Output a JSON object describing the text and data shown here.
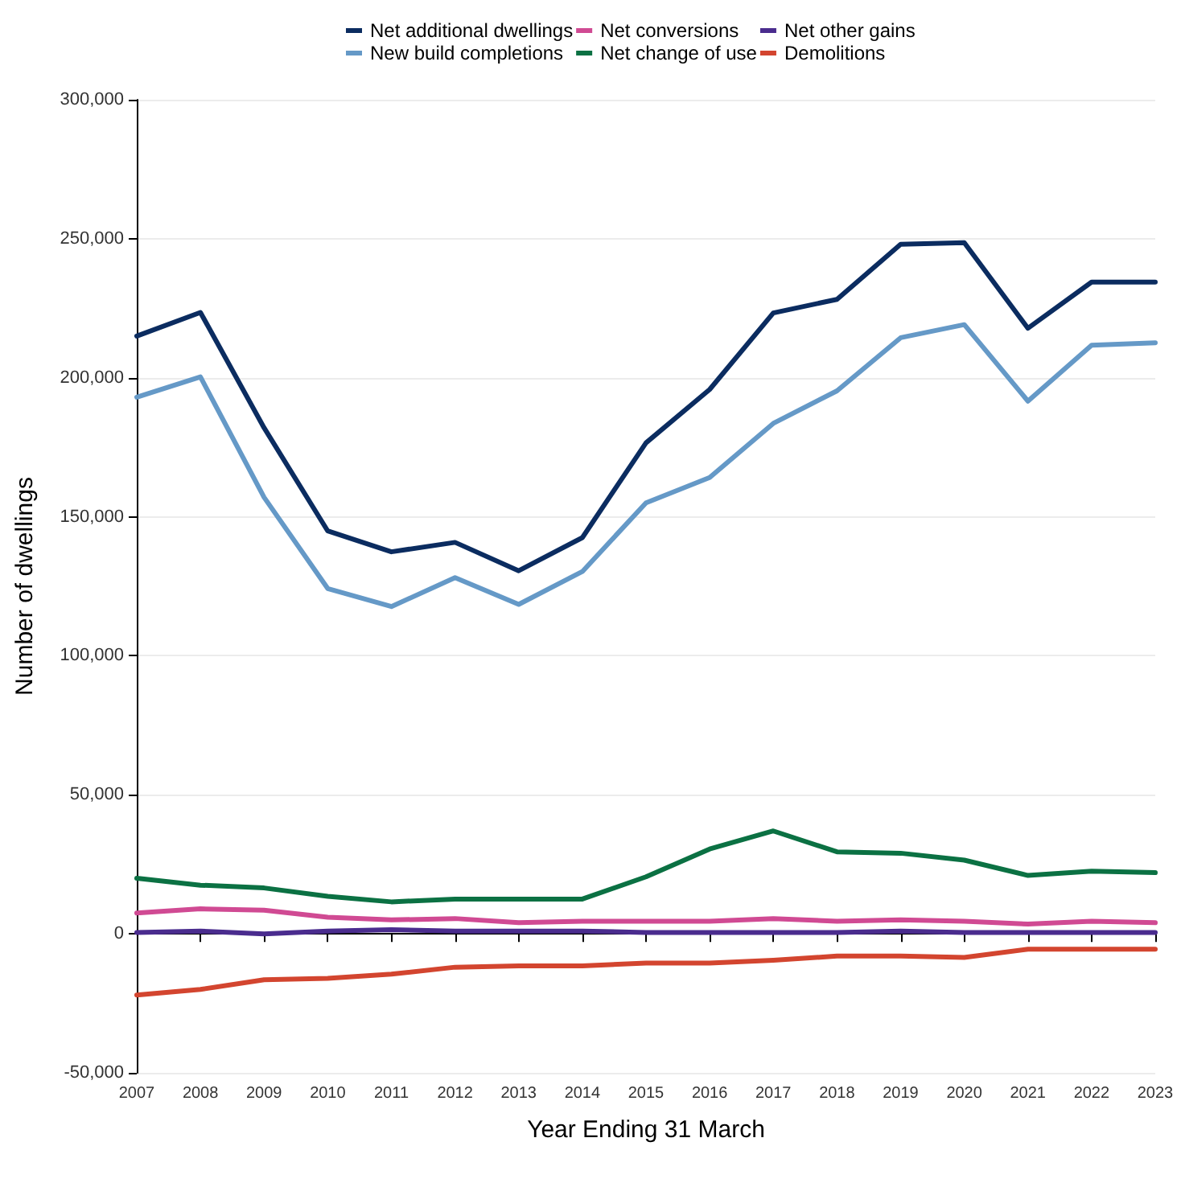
{
  "chart_data": {
    "type": "line",
    "xlabel": "Year Ending 31 March",
    "ylabel": "Number of dwellings",
    "categories": [
      "2007",
      "2008",
      "2009",
      "2010",
      "2011",
      "2012",
      "2013",
      "2014",
      "2015",
      "2016",
      "2017",
      "2018",
      "2019",
      "2020",
      "2021",
      "2022",
      "2023"
    ],
    "series": [
      {
        "name": "Net additional dwellings",
        "color": "#0b2c60",
        "values": [
          215000,
          223500,
          182000,
          144900,
          137400,
          140800,
          130600,
          142500,
          176600,
          195800,
          223300,
          228200,
          248000,
          248600,
          217800,
          234400,
          234400
        ]
      },
      {
        "name": "New build completions",
        "color": "#6599c7",
        "values": [
          193000,
          200300,
          157000,
          124200,
          117700,
          128100,
          118500,
          130300,
          155000,
          164100,
          183600,
          195300,
          214400,
          219100,
          191600,
          211700,
          212600
        ]
      },
      {
        "name": "Net conversions",
        "color": "#d04a93",
        "values": [
          7500,
          9000,
          8500,
          6000,
          5000,
          5500,
          4000,
          4500,
          4500,
          4500,
          5500,
          4500,
          5000,
          4500,
          3500,
          4500,
          4000
        ]
      },
      {
        "name": "Net change of use",
        "color": "#0b7143",
        "values": [
          20000,
          17500,
          16500,
          13500,
          11500,
          12500,
          12500,
          12500,
          20500,
          30500,
          37000,
          29500,
          29000,
          26500,
          21000,
          22500,
          22000
        ]
      },
      {
        "name": "Net other gains",
        "color": "#4a2c8e",
        "values": [
          500,
          1000,
          0,
          1000,
          1500,
          1000,
          1000,
          1000,
          500,
          500,
          500,
          500,
          1000,
          500,
          500,
          500,
          500
        ]
      },
      {
        "name": "Demolitions",
        "color": "#d3452f",
        "values": [
          -22000,
          -20000,
          -16500,
          -16000,
          -14500,
          -12000,
          -11500,
          -11500,
          -10500,
          -10500,
          -9500,
          -8000,
          -8000,
          -8500,
          -5500,
          -5500,
          -5500
        ]
      }
    ],
    "ylim": [
      -50000,
      300000
    ],
    "yticks": [
      {
        "value": -50000,
        "label": "-50,000"
      },
      0,
      {
        "value": 50000,
        "label": "50,000"
      },
      {
        "value": 100000,
        "label": "100,000"
      },
      {
        "value": 150000,
        "label": "150,000"
      },
      {
        "value": 200000,
        "label": "200,000"
      },
      {
        "value": 250000,
        "label": "250,000"
      },
      {
        "value": 300000,
        "label": "300,000"
      }
    ],
    "grid": "y",
    "legend": "top",
    "marker": "none",
    "line_style": "solid"
  }
}
